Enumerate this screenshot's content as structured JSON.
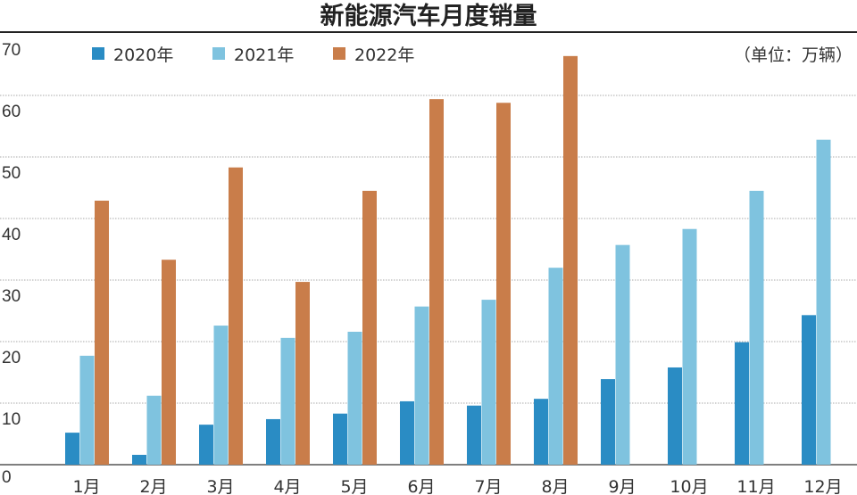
{
  "chart_data": {
    "type": "bar",
    "title": "新能源汽车月度销量",
    "unit_note": "（单位：万辆）",
    "xlabel": "",
    "ylabel": "",
    "ylim": [
      0,
      70
    ],
    "yticks": [
      "0",
      "10",
      "20",
      "30",
      "40",
      "50",
      "60",
      "70"
    ],
    "grid": true,
    "legend_position": "top-left",
    "categories": [
      "1月",
      "2月",
      "3月",
      "4月",
      "5月",
      "6月",
      "7月",
      "8月",
      "9月",
      "10月",
      "11月",
      "12月"
    ],
    "series": [
      {
        "name": "2020年",
        "color": "#2a8cc4",
        "values": [
          5.2,
          1.6,
          6.5,
          7.4,
          8.3,
          10.3,
          9.6,
          10.7,
          13.9,
          15.8,
          19.9,
          24.3
        ]
      },
      {
        "name": "2021年",
        "color": "#7fc3df",
        "values": [
          17.7,
          11.2,
          22.6,
          20.6,
          21.6,
          25.7,
          26.8,
          32.0,
          35.7,
          38.3,
          44.5,
          52.8
        ]
      },
      {
        "name": "2022年",
        "color": "#c97d4a",
        "values": [
          42.9,
          33.3,
          48.3,
          29.7,
          44.5,
          59.4,
          58.8,
          66.4,
          null,
          null,
          null,
          null
        ]
      }
    ]
  }
}
